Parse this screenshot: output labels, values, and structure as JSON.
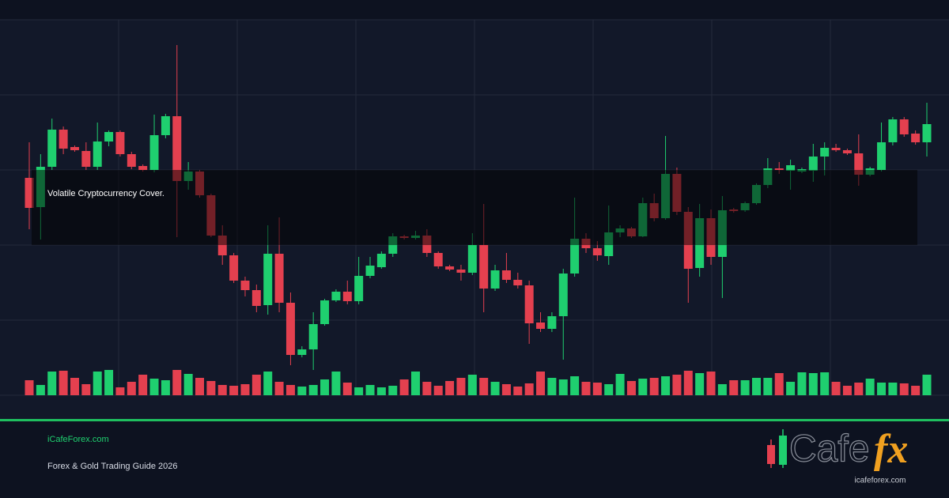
{
  "chart_data": {
    "type": "candlestick",
    "caption": "Volatile Cryptocurrency Cover.",
    "up_color": "#1fcf6f",
    "down_color": "#e4404f",
    "ylim": [
      0,
      475
    ],
    "open": [
      275,
      238,
      289,
      336,
      314,
      309,
      289,
      321,
      333,
      305,
      290,
      285,
      329,
      353,
      271,
      283,
      253,
      202,
      177,
      145,
      133,
      114,
      179,
      117,
      51,
      58,
      90,
      120,
      131,
      119,
      151,
      162,
      179,
      201,
      199,
      202,
      180,
      163,
      159,
      155,
      190,
      135,
      158,
      146,
      139,
      92,
      84,
      100,
      154,
      198,
      186,
      176,
      206,
      211,
      201,
      243,
      224,
      280,
      232,
      161,
      224,
      175,
      235,
      234,
      243,
      266,
      287,
      284,
      283,
      284,
      302,
      313,
      310,
      306,
      279,
      285,
      320,
      349,
      331,
      320
    ],
    "close": [
      237,
      289,
      336,
      312,
      310,
      289,
      321,
      333,
      305,
      289,
      285,
      329,
      353,
      271,
      283,
      253,
      202,
      177,
      145,
      133,
      113,
      179,
      117,
      51,
      58,
      90,
      120,
      131,
      119,
      151,
      164,
      179,
      201,
      199,
      202,
      180,
      163,
      159,
      155,
      190,
      135,
      158,
      146,
      139,
      91,
      84,
      100,
      154,
      198,
      186,
      177,
      206,
      211,
      201,
      243,
      224,
      280,
      232,
      160,
      224,
      175,
      234,
      233,
      243,
      266,
      287,
      285,
      291,
      286,
      302,
      313,
      310,
      306,
      279,
      287,
      320,
      349,
      330,
      320,
      343
    ],
    "high": [
      320,
      305,
      350,
      340,
      316,
      320,
      345,
      335,
      335,
      308,
      292,
      355,
      356,
      443,
      295,
      285,
      255,
      215,
      180,
      150,
      140,
      215,
      225,
      130,
      62,
      105,
      122,
      134,
      145,
      175,
      175,
      182,
      205,
      203,
      208,
      210,
      182,
      165,
      165,
      205,
      242,
      165,
      180,
      155,
      145,
      105,
      105,
      160,
      250,
      205,
      195,
      240,
      215,
      213,
      250,
      255,
      328,
      288,
      238,
      242,
      235,
      252,
      237,
      245,
      268,
      300,
      295,
      298,
      288,
      318,
      320,
      318,
      312,
      330,
      289,
      345,
      352,
      352,
      335,
      370
    ],
    "low": [
      210,
      197,
      285,
      305,
      308,
      285,
      285,
      315,
      302,
      286,
      283,
      282,
      325,
      200,
      260,
      250,
      200,
      165,
      142,
      125,
      105,
      102,
      105,
      38,
      48,
      32,
      88,
      118,
      115,
      115,
      148,
      160,
      175,
      197,
      197,
      175,
      160,
      157,
      145,
      152,
      105,
      132,
      142,
      135,
      65,
      80,
      80,
      45,
      150,
      180,
      170,
      165,
      200,
      199,
      200,
      220,
      222,
      228,
      117,
      150,
      165,
      123,
      231,
      232,
      241,
      262,
      280,
      260,
      281,
      270,
      278,
      308,
      304,
      265,
      277,
      283,
      316,
      327,
      317,
      302
    ],
    "volume": [
      19,
      13,
      30,
      31,
      22,
      14,
      30,
      32,
      10,
      17,
      26,
      21,
      19,
      32,
      27,
      22,
      18,
      13,
      12,
      14,
      26,
      30,
      17,
      13,
      11,
      13,
      20,
      30,
      16,
      10,
      13,
      10,
      12,
      20,
      30,
      17,
      12,
      18,
      22,
      26,
      22,
      17,
      14,
      11,
      15,
      30,
      22,
      20,
      24,
      17,
      16,
      14,
      27,
      18,
      21,
      22,
      24,
      26,
      31,
      28,
      30,
      14,
      19,
      19,
      22,
      22,
      28,
      17,
      29,
      28,
      29,
      17,
      12,
      16,
      21,
      16,
      16,
      15,
      12,
      26
    ]
  },
  "footer": {
    "site": "iCafeForex.com",
    "subtitle": "Forex & Gold Trading Guide 2026"
  },
  "logo": {
    "word": "Cafe",
    "accent": "fx",
    "url": "icafeforex.com"
  }
}
